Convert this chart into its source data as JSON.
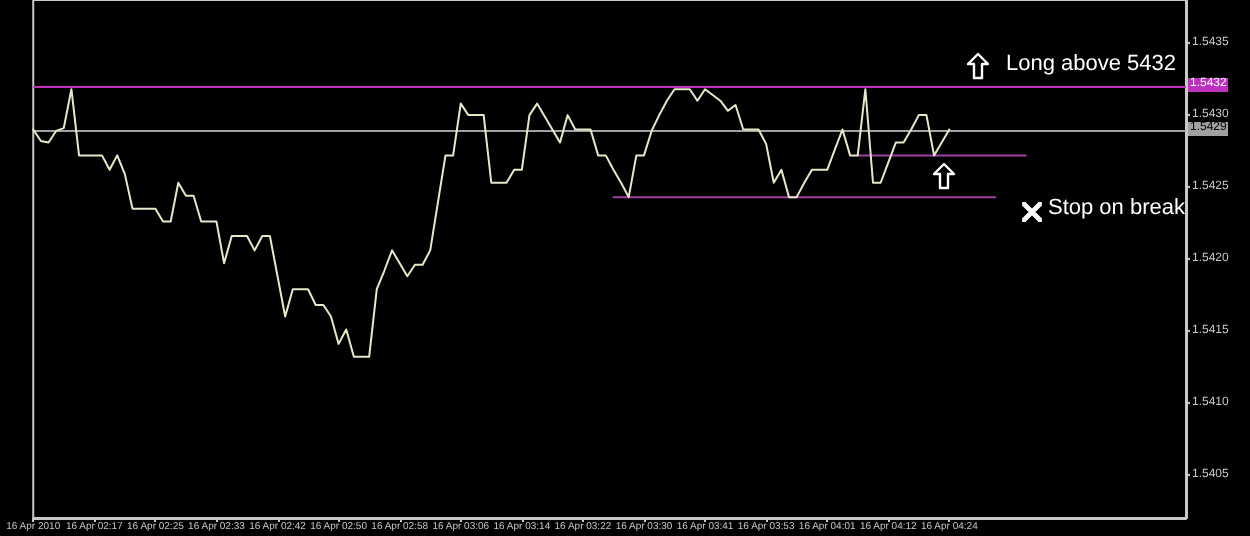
{
  "chart_data": {
    "type": "line",
    "categories": [
      "16 Apr 2010",
      null,
      null,
      null,
      null,
      null,
      null,
      null,
      "16 Apr 02:17",
      null,
      null,
      null,
      null,
      null,
      null,
      null,
      "16 Apr 02:25",
      null,
      null,
      null,
      null,
      null,
      null,
      null,
      "16 Apr 02:33",
      null,
      null,
      null,
      null,
      null,
      null,
      null,
      "16 Apr 02:42",
      null,
      null,
      null,
      null,
      null,
      null,
      null,
      "16 Apr 02:50",
      null,
      null,
      null,
      null,
      null,
      null,
      null,
      "16 Apr 02:58",
      null,
      null,
      null,
      null,
      null,
      null,
      null,
      "16 Apr 03:06",
      null,
      null,
      null,
      null,
      null,
      null,
      null,
      "16 Apr 03:14",
      null,
      null,
      null,
      null,
      null,
      null,
      null,
      "16 Apr 03:22",
      null,
      null,
      null,
      null,
      null,
      null,
      null,
      "16 Apr 03:30",
      null,
      null,
      null,
      null,
      null,
      null,
      null,
      "16 Apr 03:41",
      null,
      null,
      null,
      null,
      null,
      null,
      null,
      "16 Apr 03:53",
      null,
      null,
      null,
      null,
      null,
      null,
      null,
      "16 Apr 04:01",
      null,
      null,
      null,
      null,
      null,
      null,
      null,
      "16 Apr 04:12",
      null,
      null,
      null,
      null,
      null,
      null,
      null,
      "16 Apr 04:24",
      null,
      null,
      null,
      null,
      null,
      null,
      null,
      null,
      null,
      null,
      null,
      null,
      null,
      null,
      null,
      null,
      null,
      null,
      null,
      null,
      null,
      null,
      null,
      null,
      null,
      null,
      null,
      null,
      null,
      null,
      null
    ],
    "series": [
      {
        "color": "#e8e8c8",
        "values": [
          1.5429,
          1.54282,
          1.54281,
          1.54289,
          1.54291,
          1.54318,
          1.54272,
          1.54272,
          1.54272,
          1.54272,
          1.54262,
          1.54272,
          1.54259,
          1.54235,
          1.54235,
          1.54235,
          1.54235,
          1.54226,
          1.54226,
          1.54253,
          1.54244,
          1.54244,
          1.54226,
          1.54226,
          1.54226,
          1.54197,
          1.54216,
          1.54216,
          1.54216,
          1.54206,
          1.54216,
          1.54216,
          1.54188,
          1.5416,
          1.54179,
          1.54179,
          1.54179,
          1.54168,
          1.54168,
          1.5416,
          1.54141,
          1.54151,
          1.54132,
          1.54132,
          1.54132,
          1.54179,
          1.54192,
          1.54206,
          1.54197,
          1.54188,
          1.54196,
          1.54196,
          1.54206,
          1.54239,
          1.54272,
          1.54272,
          1.54308,
          1.543,
          1.543,
          1.543,
          1.54253,
          1.54253,
          1.54253,
          1.54262,
          1.54262,
          1.543,
          1.54308,
          1.54299,
          1.5429,
          1.54281,
          1.543,
          1.5429,
          1.5429,
          1.5429,
          1.54272,
          1.54272,
          1.54262,
          1.54253,
          1.54243,
          1.54272,
          1.54272,
          1.54289,
          1.543,
          1.5431,
          1.54318,
          1.54318,
          1.54318,
          1.5431,
          1.54318,
          1.54314,
          1.5431,
          1.54303,
          1.54307,
          1.5429,
          1.5429,
          1.5429,
          1.5428,
          1.54253,
          1.54262,
          1.54243,
          1.54243,
          1.54253,
          1.54262,
          1.54262,
          1.54262,
          1.54276,
          1.5429,
          1.54272,
          1.54272,
          1.54318,
          1.54253,
          1.54253,
          1.54267,
          1.54281,
          1.54281,
          1.5429,
          1.543,
          1.543,
          1.54272,
          1.54281,
          1.5429,
          null,
          null,
          null,
          null,
          null,
          null,
          null,
          null,
          null,
          null,
          null,
          null,
          null,
          null,
          null,
          null,
          null,
          null,
          null,
          null,
          null,
          null,
          null,
          null,
          null,
          null,
          null,
          null,
          null,
          null,
          null
        ]
      },
      {
        "color": "#a040a0",
        "values": [
          null,
          null,
          null,
          null,
          null,
          null,
          null,
          null,
          null,
          null,
          null,
          null,
          null,
          null,
          null,
          null,
          null,
          null,
          null,
          null,
          null,
          null,
          null,
          null,
          null,
          null,
          null,
          null,
          null,
          null,
          null,
          null,
          null,
          null,
          null,
          null,
          null,
          null,
          null,
          null,
          null,
          null,
          null,
          null,
          null,
          null,
          null,
          null,
          null,
          null,
          null,
          null,
          null,
          null,
          null,
          null,
          null,
          null,
          null,
          null,
          null,
          null,
          null,
          null,
          null,
          null,
          null,
          null,
          null,
          null,
          null,
          null,
          null,
          null,
          null,
          null,
          1.54243,
          1.54243,
          1.54243,
          1.54243,
          1.54243,
          1.54243,
          1.54243,
          1.54243,
          1.54243,
          1.54243,
          1.54243,
          1.54243,
          1.54243,
          1.54243,
          1.54243,
          1.54243,
          1.54243,
          1.54243,
          1.54243,
          1.54243,
          1.54243,
          1.54243,
          1.54243,
          1.54243,
          1.54243,
          1.54243,
          1.54243,
          1.54243,
          1.54243,
          1.54243,
          1.54243,
          1.54243,
          1.54243,
          1.54243,
          1.54243,
          1.54243,
          1.54243,
          1.54243,
          1.54243,
          1.54243,
          1.54243,
          1.54243,
          1.54243,
          1.54243,
          1.54243,
          1.54243,
          1.54243,
          1.54243,
          1.54243,
          1.54243,
          1.54243,
          null,
          null,
          null,
          null,
          null,
          null,
          null,
          null,
          null,
          null,
          null,
          null,
          null,
          null,
          null,
          null,
          null,
          null,
          null,
          null,
          null,
          null,
          null,
          null,
          null
        ]
      },
      {
        "color": "#a040a0",
        "values": [
          null,
          null,
          null,
          null,
          null,
          null,
          null,
          null,
          null,
          null,
          null,
          null,
          null,
          null,
          null,
          null,
          null,
          null,
          null,
          null,
          null,
          null,
          null,
          null,
          null,
          null,
          null,
          null,
          null,
          null,
          null,
          null,
          null,
          null,
          null,
          null,
          null,
          null,
          null,
          null,
          null,
          null,
          null,
          null,
          null,
          null,
          null,
          null,
          null,
          null,
          null,
          null,
          null,
          null,
          null,
          null,
          null,
          null,
          null,
          null,
          null,
          null,
          null,
          null,
          null,
          null,
          null,
          null,
          null,
          null,
          null,
          null,
          null,
          null,
          null,
          null,
          null,
          null,
          null,
          null,
          null,
          null,
          null,
          null,
          null,
          null,
          null,
          null,
          null,
          null,
          null,
          null,
          null,
          null,
          null,
          null,
          null,
          null,
          null,
          null,
          null,
          null,
          null,
          null,
          null,
          null,
          null,
          null,
          1.54272,
          1.54272,
          1.54272,
          1.54272,
          1.54272,
          1.54272,
          1.54272,
          1.54272,
          1.54272,
          1.54272,
          1.54272,
          1.54272,
          1.54272,
          1.54272,
          1.54272,
          1.54272,
          1.54272,
          1.54272,
          1.54272,
          1.54272,
          1.54272,
          1.54272,
          1.54272,
          null,
          null,
          null,
          null,
          null,
          null,
          null,
          null,
          null,
          null,
          null,
          null,
          null,
          null,
          null,
          null,
          null,
          null,
          null,
          null,
          null
        ]
      }
    ],
    "ylim": [
      1.5402,
      1.5438
    ],
    "yticks": [
      {
        "value": 1.5405,
        "label": "1.5405"
      },
      {
        "value": 1.541,
        "label": "1.5410"
      },
      {
        "value": 1.5415,
        "label": "1.5415"
      },
      {
        "value": 1.542,
        "label": "1.5420"
      },
      {
        "value": 1.5425,
        "label": "1.5425"
      },
      {
        "value": 1.543,
        "label": "1.5430"
      },
      {
        "value": 1.5435,
        "label": "1.5435"
      }
    ],
    "ref_lines": [
      {
        "axis": "y",
        "value": 1.5432,
        "label": "1.5432",
        "color": "#c030c0"
      },
      {
        "axis": "y",
        "value": 1.5429,
        "label": "1.5429",
        "color": "#a0a0a0"
      }
    ],
    "annotations": [
      "Long above 5432",
      "Stop on break"
    ],
    "marker": "none",
    "grid": false
  }
}
